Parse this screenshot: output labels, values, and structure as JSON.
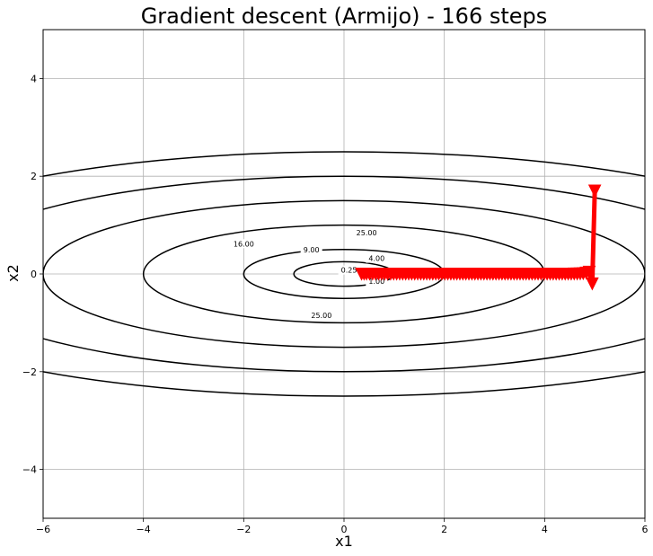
{
  "chart_data": {
    "type": "line",
    "title": "Gradient descent (Armijo) - 166 steps",
    "xlabel": "x1",
    "ylabel": "x2",
    "xlim": [
      -6,
      6
    ],
    "ylim": [
      -5,
      5
    ],
    "grid": true,
    "x_ticks": [
      -6,
      -4,
      -2,
      0,
      2,
      4,
      6
    ],
    "y_ticks": [
      -4,
      -2,
      0,
      2,
      4
    ],
    "contours": {
      "function": "0.25*x1^2 + 4*x2^2",
      "levels": [
        0.25,
        1.0,
        4.0,
        9.0,
        16.0,
        25.0
      ],
      "color": "#000000",
      "labels": [
        {
          "text": "0.25",
          "x": 0.1,
          "y": 0.08
        },
        {
          "text": "1.00",
          "x": 0.65,
          "y": -0.15
        },
        {
          "text": "4.00",
          "x": 0.65,
          "y": 0.32
        },
        {
          "text": "9.00",
          "x": -0.65,
          "y": 0.5
        },
        {
          "text": "16.00",
          "x": -2.0,
          "y": 0.62
        },
        {
          "text": "25.00",
          "x": 0.45,
          "y": 0.85
        },
        {
          "text": "25.00",
          "x": -0.45,
          "y": -0.85
        }
      ]
    },
    "series": [
      {
        "color": "#ff0000",
        "marker": "triangle-down",
        "x": [
          5.0,
          4.95,
          4.89,
          4.83,
          4.77,
          4.71,
          4.65,
          4.59,
          4.53,
          4.47,
          4.41,
          4.35,
          4.29,
          4.23,
          4.17,
          4.11,
          4.05,
          3.99,
          3.93,
          3.87,
          3.81,
          3.75,
          3.69,
          3.63,
          3.57,
          3.51,
          3.45,
          3.39,
          3.33,
          3.27,
          3.21,
          3.15,
          3.09,
          3.03,
          2.97,
          2.91,
          2.85,
          2.79,
          2.73,
          2.67,
          2.61,
          2.55,
          2.49,
          2.43,
          2.37,
          2.31,
          2.25,
          2.19,
          2.13,
          2.07,
          2.01,
          1.95,
          1.89,
          1.83,
          1.77,
          1.71,
          1.65,
          1.59,
          1.53,
          1.47,
          1.41,
          1.35,
          1.29,
          1.23,
          1.17,
          1.11,
          1.05,
          0.99,
          0.93,
          0.87,
          0.81,
          0.75,
          0.69,
          0.63,
          0.57,
          0.51,
          0.45,
          0.4,
          0.35
        ],
        "y": [
          1.7,
          -0.2,
          0.04,
          0.02,
          0.01,
          0.005,
          0.003,
          0.002,
          0.001,
          0.001,
          0.0,
          0.0,
          0.0,
          0.0,
          0.0,
          0.0,
          0.0,
          0.0,
          0.0,
          0.0,
          0.0,
          0.0,
          0.0,
          0.0,
          0.0,
          0.0,
          0.0,
          0.0,
          0.0,
          0.0,
          0.0,
          0.0,
          0.0,
          0.0,
          0.0,
          0.0,
          0.0,
          0.0,
          0.0,
          0.0,
          0.0,
          0.0,
          0.0,
          0.0,
          0.0,
          0.0,
          0.0,
          0.0,
          0.0,
          0.0,
          0.0,
          0.0,
          0.0,
          0.0,
          0.0,
          0.0,
          0.0,
          0.0,
          0.0,
          0.0,
          0.0,
          0.0,
          0.0,
          0.0,
          0.0,
          0.0,
          0.0,
          0.0,
          0.0,
          0.0,
          0.0,
          0.0,
          0.0,
          0.0,
          0.0,
          0.0,
          0.0,
          0.0,
          0.0
        ]
      }
    ]
  }
}
